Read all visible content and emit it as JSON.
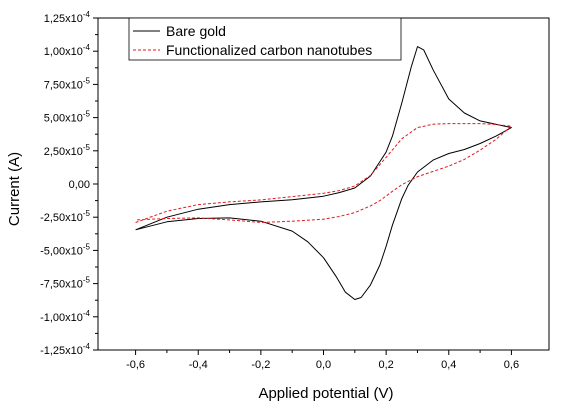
{
  "chart_data": {
    "type": "line",
    "title": "",
    "xlabel": "Applied potential (V)",
    "ylabel": "Current (A)",
    "xlim": [
      -0.72,
      0.72
    ],
    "ylim": [
      -0.000125,
      0.000125
    ],
    "x_ticks": [
      -0.6,
      -0.4,
      -0.2,
      0.0,
      0.2,
      0.4,
      0.6
    ],
    "x_tick_labels": [
      "-0,6",
      "-0,4",
      "-0,2",
      "0,0",
      "0,2",
      "0,4",
      "0,6"
    ],
    "y_ticks": [
      -0.000125,
      -0.0001,
      -7.5e-05,
      -5e-05,
      -2.5e-05,
      0,
      2.5e-05,
      5e-05,
      7.5e-05,
      0.0001,
      0.000125
    ],
    "y_tick_labels": [
      {
        "mantissa": "-1,25x10",
        "exponent": "-4"
      },
      {
        "mantissa": "-1,00x10",
        "exponent": "-4"
      },
      {
        "mantissa": "-7,50x10",
        "exponent": "-5"
      },
      {
        "mantissa": "-5,00x10",
        "exponent": "-5"
      },
      {
        "mantissa": "-2,50x10",
        "exponent": "-5"
      },
      {
        "mantissa": "0,00",
        "exponent": ""
      },
      {
        "mantissa": "2,50x10",
        "exponent": "-5"
      },
      {
        "mantissa": "5,00x10",
        "exponent": "-5"
      },
      {
        "mantissa": "7,50x10",
        "exponent": "-5"
      },
      {
        "mantissa": "1,00x10",
        "exponent": "-4"
      },
      {
        "mantissa": "1,25x10",
        "exponent": "-4"
      }
    ],
    "grid": false,
    "legend_position": "top-left",
    "series": [
      {
        "name": "Bare gold",
        "color": "#000000",
        "style": "solid",
        "x": [
          -0.6,
          -0.5,
          -0.4,
          -0.3,
          -0.2,
          -0.1,
          0.0,
          0.05,
          0.1,
          0.15,
          0.2,
          0.22,
          0.25,
          0.28,
          0.3,
          0.32,
          0.35,
          0.4,
          0.45,
          0.5,
          0.55,
          0.6,
          0.55,
          0.5,
          0.45,
          0.4,
          0.35,
          0.3,
          0.27,
          0.25,
          0.22,
          0.2,
          0.18,
          0.15,
          0.12,
          0.1,
          0.07,
          0.04,
          0.0,
          -0.05,
          -0.1,
          -0.2,
          -0.3,
          -0.4,
          -0.5,
          -0.6
        ],
        "y": [
          -3.45e-05,
          -2.5e-05,
          -1.9e-05,
          -1.55e-05,
          -1.35e-05,
          -1.18e-05,
          -9.2e-06,
          -6.5e-06,
          -3e-06,
          6e-06,
          2.4e-05,
          3.6e-05,
          6.1e-05,
          8.8e-05,
          0.0001035,
          0.000101,
          8.6e-05,
          6.4e-05,
          5.35e-05,
          4.75e-05,
          4.5e-05,
          4.25e-05,
          3.6e-05,
          3.05e-05,
          2.6e-05,
          2.3e-05,
          1.8e-05,
          9e-06,
          -1e-06,
          -1.1e-05,
          -3.1e-05,
          -4.7e-05,
          -6.1e-05,
          -7.6e-05,
          -8.55e-05,
          -8.7e-05,
          -8.15e-05,
          -6.95e-05,
          -5.55e-05,
          -4.35e-05,
          -3.55e-05,
          -2.8e-05,
          -2.55e-05,
          -2.6e-05,
          -2.85e-05,
          -3.45e-05
        ]
      },
      {
        "name": "Functionalized carbon nanotubes",
        "color": "#e31a1c",
        "style": "dashed",
        "x": [
          -0.6,
          -0.5,
          -0.4,
          -0.3,
          -0.2,
          -0.1,
          0.0,
          0.05,
          0.1,
          0.15,
          0.2,
          0.25,
          0.3,
          0.35,
          0.4,
          0.45,
          0.5,
          0.55,
          0.6,
          0.55,
          0.5,
          0.45,
          0.4,
          0.35,
          0.3,
          0.25,
          0.22,
          0.2,
          0.18,
          0.15,
          0.1,
          0.05,
          0.0,
          -0.1,
          -0.2,
          -0.3,
          -0.4,
          -0.5,
          -0.6
        ],
        "y": [
          -2.9e-05,
          -2.05e-05,
          -1.55e-05,
          -1.35e-05,
          -1.2e-05,
          -9.5e-06,
          -7e-06,
          -5e-06,
          -1.5e-06,
          6.5e-06,
          2e-05,
          3.4e-05,
          4.25e-05,
          4.5e-05,
          4.55e-05,
          4.55e-05,
          4.55e-05,
          4.48e-05,
          4.35e-05,
          3.35e-05,
          2.55e-05,
          1.85e-05,
          1.35e-05,
          9.5e-06,
          5.5e-06,
          -5e-07,
          -5.5e-06,
          -9e-06,
          -1.25e-05,
          -1.65e-05,
          -2.15e-05,
          -2.45e-05,
          -2.65e-05,
          -2.8e-05,
          -2.9e-05,
          -2.7e-05,
          -2.55e-05,
          -2.6e-05,
          -2.7e-05
        ]
      }
    ]
  }
}
